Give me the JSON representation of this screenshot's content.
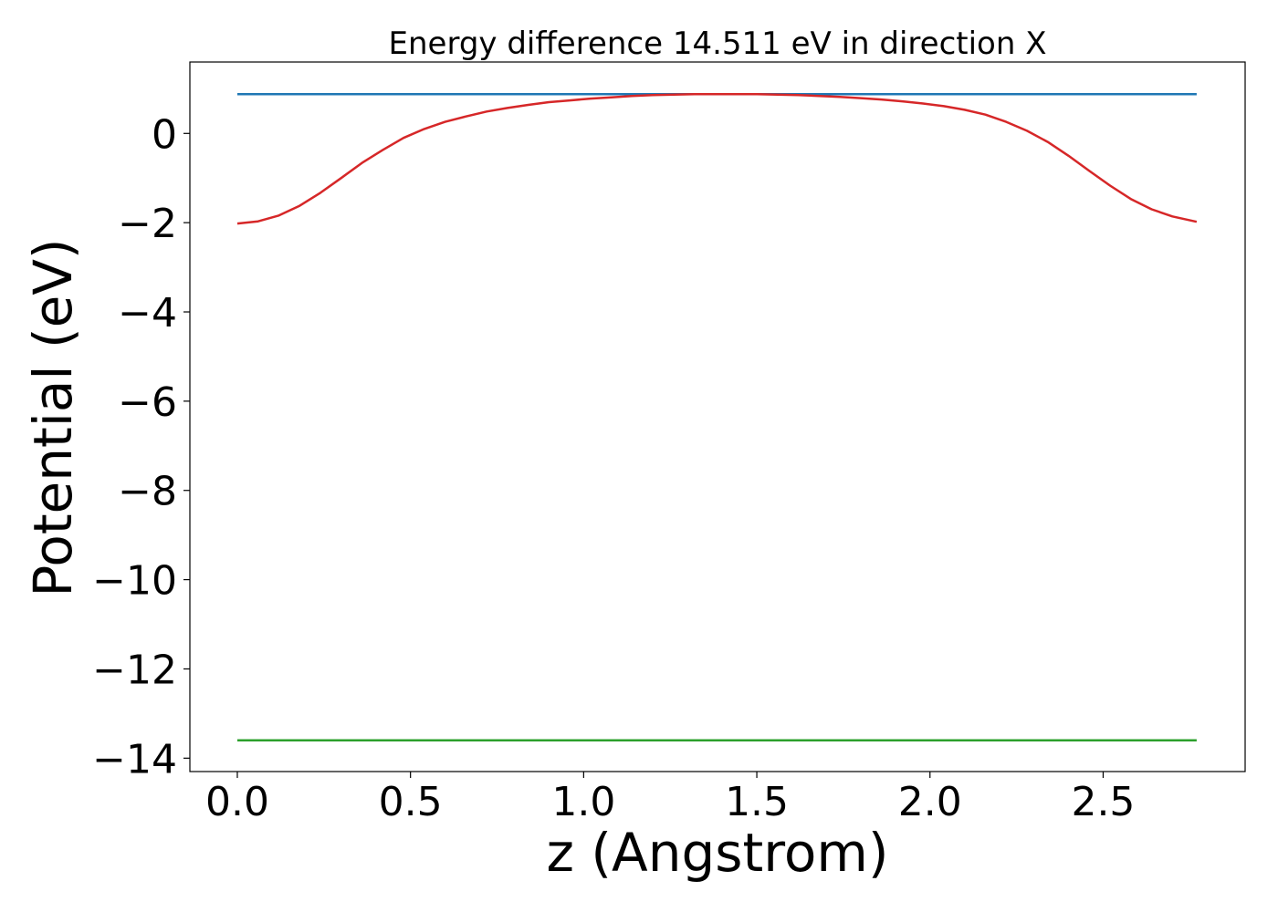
{
  "chart_data": {
    "type": "line",
    "title": "Energy difference 14.511 eV in direction X",
    "xlabel": "z (Angstrom)",
    "ylabel": "Potential (eV)",
    "xlim": [
      -0.137,
      2.91
    ],
    "ylim": [
      -14.3,
      1.6
    ],
    "xticks": [
      {
        "value": 0.0,
        "label": "0.0"
      },
      {
        "value": 0.5,
        "label": "0.5"
      },
      {
        "value": 1.0,
        "label": "1.0"
      },
      {
        "value": 1.5,
        "label": "1.5"
      },
      {
        "value": 2.0,
        "label": "2.0"
      },
      {
        "value": 2.5,
        "label": "2.5"
      }
    ],
    "yticks": [
      {
        "value": 0,
        "label": "0"
      },
      {
        "value": -2,
        "label": "−2"
      },
      {
        "value": -4,
        "label": "−4"
      },
      {
        "value": -6,
        "label": "−6"
      },
      {
        "value": -8,
        "label": "−8"
      },
      {
        "value": -10,
        "label": "−10"
      },
      {
        "value": -12,
        "label": "−12"
      },
      {
        "value": -14,
        "label": "−14"
      }
    ],
    "grid": false,
    "legend": "none",
    "series": [
      {
        "color": "#1f77b4",
        "x": [
          0.0,
          2.77
        ],
        "y": [
          0.88,
          0.88
        ]
      },
      {
        "color": "#2ca02c",
        "x": [
          0.0,
          2.77
        ],
        "y": [
          -13.6,
          -13.6
        ]
      },
      {
        "color": "#d62728",
        "x": [
          0.0,
          0.06,
          0.12,
          0.18,
          0.24,
          0.3,
          0.36,
          0.42,
          0.48,
          0.54,
          0.6,
          0.66,
          0.72,
          0.78,
          0.84,
          0.9,
          0.96,
          1.02,
          1.08,
          1.14,
          1.2,
          1.26,
          1.32,
          1.38,
          1.44,
          1.5,
          1.56,
          1.62,
          1.68,
          1.74,
          1.8,
          1.86,
          1.92,
          1.98,
          2.04,
          2.1,
          2.16,
          2.22,
          2.28,
          2.34,
          2.4,
          2.46,
          2.52,
          2.58,
          2.64,
          2.7,
          2.77
        ],
        "y": [
          -2.02,
          -1.97,
          -1.84,
          -1.62,
          -1.33,
          -1.0,
          -0.66,
          -0.37,
          -0.1,
          0.1,
          0.26,
          0.38,
          0.49,
          0.57,
          0.64,
          0.7,
          0.74,
          0.78,
          0.81,
          0.84,
          0.86,
          0.87,
          0.88,
          0.88,
          0.88,
          0.88,
          0.87,
          0.86,
          0.84,
          0.82,
          0.79,
          0.76,
          0.72,
          0.67,
          0.61,
          0.53,
          0.42,
          0.26,
          0.06,
          -0.19,
          -0.5,
          -0.84,
          -1.17,
          -1.47,
          -1.7,
          -1.86,
          -1.98
        ]
      }
    ]
  }
}
